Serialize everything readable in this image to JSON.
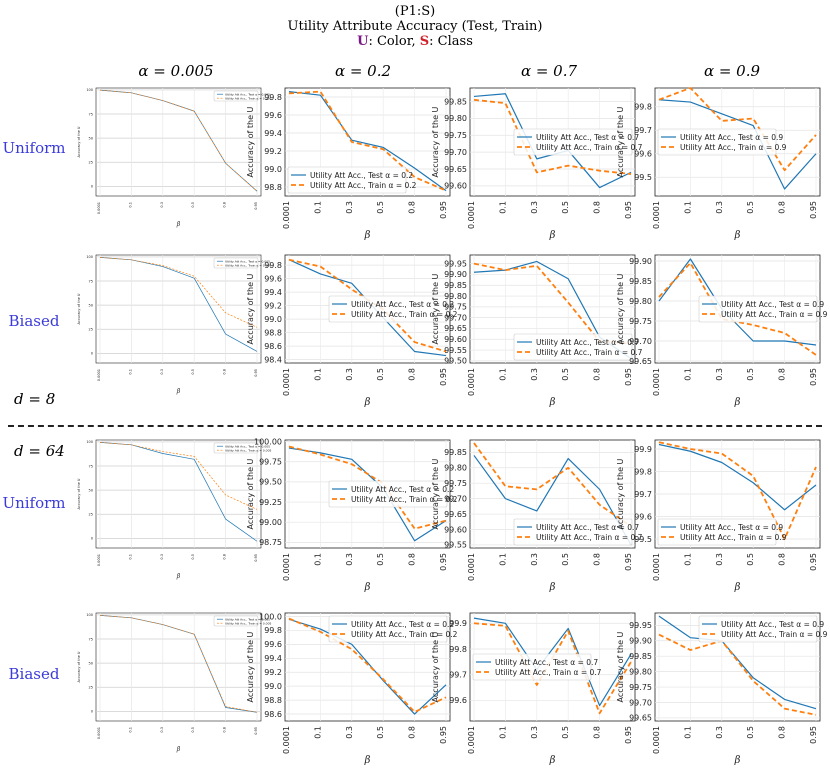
{
  "header": {
    "line1": "(P1:S)",
    "line2": "Utility Attribute Accuracy (Test, Train)",
    "line3_u": "U",
    "line3_mid": ": Color, ",
    "line3_s": "S",
    "line3_end": ": Class"
  },
  "columns": [
    "α = 0.005",
    "α = 0.2",
    "α = 0.7",
    "α = 0.9"
  ],
  "rows": [
    "Uniform",
    "Biased",
    "Uniform",
    "Biased"
  ],
  "d_labels": {
    "d8": "d = 8",
    "d64": "d = 64"
  },
  "colors": {
    "test": "#1f77b4",
    "train": "#ff7f0e",
    "row_label": "#3b3bd9",
    "u_mark": "#7b1a85",
    "s_mark": "#d0202a"
  },
  "chart_data": [
    {
      "type": "line",
      "row": 0,
      "col": 0,
      "categories": [
        "0.0001",
        "0.1",
        "0.3",
        "0.5",
        "0.8",
        "0.95"
      ],
      "ylim": [
        -10,
        102
      ],
      "yticks": [
        "100",
        "75",
        "50",
        "25",
        "0",
        "-25"
      ],
      "ylabel": "Accuracy of the U",
      "xlabel": "β",
      "legend_pos": "top-right",
      "series": [
        {
          "name": "Utility Att Acc., Test α = 0.005",
          "values": [
            99.8,
            97.0,
            89.0,
            78.0,
            24.0,
            -5.0
          ]
        },
        {
          "name": "Utility Att Acc., Train α = 0.005",
          "values": [
            99.8,
            97.0,
            89.0,
            78.0,
            24.0,
            -5.0
          ]
        }
      ]
    },
    {
      "type": "line",
      "row": 0,
      "col": 1,
      "categories": [
        "0.0001",
        "0.1",
        "0.3",
        "0.5",
        "0.8",
        "0.95"
      ],
      "ylim": [
        98.7,
        99.9
      ],
      "yticks": [
        "99.8",
        "99.6",
        "99.4",
        "99.2",
        "99.0",
        "98.8"
      ],
      "ylabel": "Accuracy of the U",
      "xlabel": "β",
      "legend_pos": "bottom-left",
      "series": [
        {
          "name": "Utility Att Acc., Test α = 0.2",
          "values": [
            99.86,
            99.82,
            99.32,
            99.24,
            99.01,
            98.76
          ]
        },
        {
          "name": "Utility Att Acc., Train α = 0.2",
          "values": [
            99.84,
            99.86,
            99.3,
            99.22,
            98.91,
            98.76
          ]
        }
      ]
    },
    {
      "type": "line",
      "row": 0,
      "col": 2,
      "categories": [
        "0.0001",
        "0.1",
        "0.3",
        "0.5",
        "0.8",
        "0.95"
      ],
      "ylim": [
        99.57,
        99.89
      ],
      "yticks": [
        "99.85",
        "99.80",
        "99.75",
        "99.70",
        "99.65",
        "99.60"
      ],
      "ylabel": "Accuracy of the U",
      "xlabel": "β",
      "legend_pos": "center-right",
      "series": [
        {
          "name": "Utility Att Acc., Test α = 0.7",
          "values": [
            99.865,
            99.873,
            99.68,
            99.705,
            99.595,
            99.64
          ]
        },
        {
          "name": "Utility Att Acc., Train α = 0.7",
          "values": [
            99.855,
            99.845,
            99.64,
            99.66,
            99.645,
            99.635
          ]
        }
      ]
    },
    {
      "type": "line",
      "row": 0,
      "col": 3,
      "categories": [
        "0.0001",
        "0.1",
        "0.3",
        "0.5",
        "0.8",
        "0.95"
      ],
      "ylim": [
        99.42,
        99.88
      ],
      "yticks": [
        "99.8",
        "99.7",
        "99.6",
        "99.5"
      ],
      "ylabel": "Accuracy of the U",
      "xlabel": "β",
      "legend_pos": "center-left",
      "series": [
        {
          "name": "Utility Att Acc., Test α = 0.9",
          "values": [
            99.83,
            99.82,
            99.77,
            99.72,
            99.45,
            99.6
          ]
        },
        {
          "name": "Utility Att Acc., Train α = 0.9",
          "values": [
            99.83,
            99.88,
            99.74,
            99.75,
            99.53,
            99.68
          ]
        }
      ]
    },
    {
      "type": "line",
      "row": 1,
      "col": 0,
      "categories": [
        "0.0001",
        "0.1",
        "0.3",
        "0.5",
        "0.8",
        "0.95"
      ],
      "ylim": [
        -10,
        102
      ],
      "yticks": [
        "100",
        "75",
        "50",
        "25",
        "0"
      ],
      "ylabel": "Accuracy of the U",
      "xlabel": "β",
      "legend_pos": "top-right",
      "series": [
        {
          "name": "Utility Att Acc., Test α = 0.005",
          "values": [
            99.5,
            97.0,
            90.0,
            78.0,
            20.0,
            2.0
          ]
        },
        {
          "name": "Utility Att Acc., Train α = 0.005",
          "values": [
            99.5,
            97.0,
            91.0,
            80.0,
            42.0,
            27.0
          ]
        }
      ]
    },
    {
      "type": "line",
      "row": 1,
      "col": 1,
      "categories": [
        "0.0001",
        "0.1",
        "0.3",
        "0.5",
        "0.8",
        "0.95"
      ],
      "ylim": [
        98.35,
        99.95
      ],
      "yticks": [
        "99.8",
        "99.6",
        "99.4",
        "99.2",
        "99.0",
        "98.8",
        "98.6",
        "98.4"
      ],
      "ylabel": "Accuracy of the U",
      "xlabel": "β",
      "legend_pos": "center-right",
      "series": [
        {
          "name": "Utility Att Acc., Test α = 0.2",
          "values": [
            99.88,
            99.67,
            99.53,
            99.02,
            98.52,
            98.46
          ]
        },
        {
          "name": "Utility Att Acc., Train α = 0.2",
          "values": [
            99.88,
            99.78,
            99.44,
            99.14,
            98.66,
            98.52
          ]
        }
      ]
    },
    {
      "type": "line",
      "row": 1,
      "col": 2,
      "categories": [
        "0.0001",
        "0.1",
        "0.3",
        "0.5",
        "0.8",
        "0.95"
      ],
      "ylim": [
        99.49,
        99.99
      ],
      "yticks": [
        "99.95",
        "99.90",
        "99.85",
        "99.80",
        "99.75",
        "99.70",
        "99.65",
        "99.60",
        "99.55",
        "99.50"
      ],
      "ylabel": "Accuracy of the U",
      "xlabel": "β",
      "legend_pos": "bottom-right",
      "series": [
        {
          "name": "Utility Att Acc., Test α = 0.7",
          "values": [
            99.91,
            99.92,
            99.96,
            99.88,
            99.61,
            99.51
          ]
        },
        {
          "name": "Utility Att Acc., Train α = 0.7",
          "values": [
            99.95,
            99.92,
            99.94,
            99.77,
            99.59,
            99.58
          ]
        }
      ]
    },
    {
      "type": "line",
      "row": 1,
      "col": 3,
      "categories": [
        "0.0001",
        "0.1",
        "0.3",
        "0.5",
        "0.8",
        "0.95"
      ],
      "ylim": [
        99.645,
        99.915
      ],
      "yticks": [
        "99.90",
        "99.85",
        "99.80",
        "99.75",
        "99.70",
        "99.65"
      ],
      "ylabel": "Accuracy of the U",
      "xlabel": "β",
      "legend_pos": "center-right",
      "series": [
        {
          "name": "Utility Att Acc., Test α = 0.9",
          "values": [
            99.8,
            99.905,
            99.78,
            99.7,
            99.7,
            99.69
          ]
        },
        {
          "name": "Utility Att Acc., Train α = 0.9",
          "values": [
            99.81,
            99.895,
            99.755,
            99.74,
            99.72,
            99.665
          ]
        }
      ]
    },
    {
      "type": "line",
      "row": 2,
      "col": 0,
      "categories": [
        "0.0001",
        "0.1",
        "0.3",
        "0.5",
        "0.8",
        "0.95"
      ],
      "ylim": [
        -10,
        102
      ],
      "yticks": [
        "100",
        "75",
        "50",
        "25",
        "0"
      ],
      "ylabel": "Accuracy of the U",
      "xlabel": "β",
      "legend_pos": "top-right",
      "series": [
        {
          "name": "Utility Att Acc., Test α = 0.005",
          "values": [
            99.5,
            97.0,
            88.0,
            82.0,
            20.0,
            -3.0
          ]
        },
        {
          "name": "Utility Att Acc., Train α = 0.005",
          "values": [
            99.5,
            97.0,
            90.0,
            85.0,
            45.0,
            30.0
          ]
        }
      ]
    },
    {
      "type": "line",
      "row": 2,
      "col": 1,
      "categories": [
        "0.0001",
        "0.1",
        "0.3",
        "0.5",
        "0.8",
        "0.95"
      ],
      "ylim": [
        98.68,
        100.02
      ],
      "yticks": [
        "100.00",
        "99.75",
        "99.50",
        "99.25",
        "99.00",
        "98.75"
      ],
      "ylabel": "Accuracy of the U",
      "xlabel": "β",
      "legend_pos": "center-right",
      "series": [
        {
          "name": "Utility Att Acc., Test α = 0.2",
          "values": [
            99.92,
            99.86,
            99.78,
            99.42,
            98.77,
            99.02
          ]
        },
        {
          "name": "Utility Att Acc., Train α = 0.2",
          "values": [
            99.94,
            99.84,
            99.72,
            99.48,
            98.92,
            99.02
          ]
        }
      ]
    },
    {
      "type": "line",
      "row": 2,
      "col": 2,
      "categories": [
        "0.0001",
        "0.1",
        "0.3",
        "0.5",
        "0.8",
        "0.95"
      ],
      "ylim": [
        99.54,
        99.89
      ],
      "yticks": [
        "99.85",
        "99.80",
        "99.75",
        "99.70",
        "99.65",
        "99.60",
        "99.55"
      ],
      "ylabel": "Accuracy of the U",
      "xlabel": "β",
      "legend_pos": "bottom-right",
      "series": [
        {
          "name": "Utility Att Acc., Test α = 0.7",
          "values": [
            99.84,
            99.7,
            99.66,
            99.83,
            99.73,
            99.55
          ]
        },
        {
          "name": "Utility Att Acc., Train α = 0.7",
          "values": [
            99.88,
            99.74,
            99.73,
            99.8,
            99.68,
            99.61
          ]
        }
      ]
    },
    {
      "type": "line",
      "row": 2,
      "col": 3,
      "categories": [
        "0.0001",
        "0.1",
        "0.3",
        "0.5",
        "0.8",
        "0.95"
      ],
      "ylim": [
        99.46,
        99.94
      ],
      "yticks": [
        "99.9",
        "99.8",
        "99.7",
        "99.6",
        "99.5"
      ],
      "ylabel": "Accuracy of the U",
      "xlabel": "β",
      "legend_pos": "bottom-left",
      "series": [
        {
          "name": "Utility Att Acc., Test α = 0.9",
          "values": [
            99.92,
            99.89,
            99.84,
            99.75,
            99.63,
            99.74
          ]
        },
        {
          "name": "Utility Att Acc., Train α = 0.9",
          "values": [
            99.93,
            99.9,
            99.88,
            99.78,
            99.5,
            99.82
          ]
        }
      ]
    },
    {
      "type": "line",
      "row": 3,
      "col": 0,
      "categories": [
        "0.0001",
        "0.1",
        "0.3",
        "0.5",
        "0.8",
        "0.95"
      ],
      "ylim": [
        -10,
        102
      ],
      "yticks": [
        "100",
        "75",
        "50",
        "25",
        "0"
      ],
      "ylabel": "Accuracy of the U",
      "xlabel": "β",
      "legend_pos": "top-right",
      "series": [
        {
          "name": "Utility Att Acc., Test α = 0.005",
          "values": [
            99.5,
            97.0,
            90.0,
            80.0,
            4.0,
            -1.0
          ]
        },
        {
          "name": "Utility Att Acc., Train α = 0.005",
          "values": [
            99.5,
            97.0,
            90.0,
            80.0,
            5.0,
            -1.0
          ]
        }
      ]
    },
    {
      "type": "line",
      "row": 3,
      "col": 1,
      "categories": [
        "0.0001",
        "0.1",
        "0.3",
        "0.5",
        "0.8",
        "0.95"
      ],
      "ylim": [
        98.5,
        100.05
      ],
      "yticks": [
        "100.0",
        "99.8",
        "99.6",
        "99.4",
        "99.2",
        "99.0",
        "98.8",
        "98.6"
      ],
      "ylabel": "Accuracy of the U",
      "xlabel": "β",
      "legend_pos": "top-right",
      "series": [
        {
          "name": "Utility Att Acc., Test α = 0.2",
          "values": [
            99.96,
            99.82,
            99.6,
            99.08,
            98.6,
            99.02
          ]
        },
        {
          "name": "Utility Att Acc., Train α = 0.2",
          "values": [
            99.97,
            99.78,
            99.53,
            99.1,
            98.63,
            98.84
          ]
        }
      ]
    },
    {
      "type": "line",
      "row": 3,
      "col": 2,
      "categories": [
        "0.0001",
        "0.1",
        "0.3",
        "0.5",
        "0.8",
        "0.95"
      ],
      "ylim": [
        99.52,
        99.94
      ],
      "yticks": [
        "99.9",
        "99.8",
        "99.7",
        "99.6"
      ],
      "ylabel": "Accuracy of the U",
      "xlabel": "β",
      "legend_pos": "center-left",
      "series": [
        {
          "name": "Utility Att Acc., Test α = 0.7",
          "values": [
            99.92,
            99.9,
            99.72,
            99.88,
            99.58,
            99.78
          ]
        },
        {
          "name": "Utility Att Acc., Train α = 0.7",
          "values": [
            99.9,
            99.89,
            99.66,
            99.87,
            99.55,
            99.75
          ]
        }
      ]
    },
    {
      "type": "line",
      "row": 3,
      "col": 3,
      "categories": [
        "0.0001",
        "0.1",
        "0.3",
        "0.5",
        "0.8",
        "0.95"
      ],
      "ylim": [
        99.64,
        99.99
      ],
      "yticks": [
        "99.95",
        "99.90",
        "99.85",
        "99.80",
        "99.75",
        "99.70",
        "99.65"
      ],
      "ylabel": "Accuracy of the U",
      "xlabel": "β",
      "legend_pos": "top-right",
      "series": [
        {
          "name": "Utility Att Acc., Test α = 0.9",
          "values": [
            99.98,
            99.91,
            99.9,
            99.78,
            99.71,
            99.68
          ]
        },
        {
          "name": "Utility Att Acc., Train α = 0.9",
          "values": [
            99.92,
            99.87,
            99.9,
            99.77,
            99.68,
            99.66
          ]
        }
      ]
    }
  ]
}
